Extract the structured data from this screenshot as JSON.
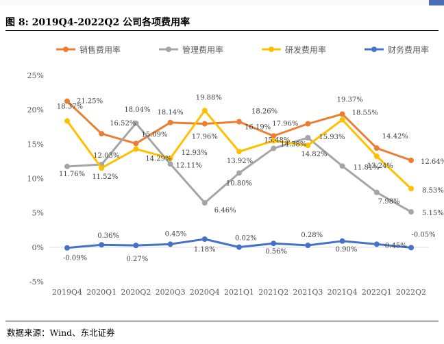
{
  "title": "图  8:  2019Q4-2022Q2 公司各项费用率",
  "source": "数据来源：Wind、东北证券",
  "chart_data": {
    "type": "line",
    "categories": [
      "2019Q4",
      "2020Q1",
      "2020Q2",
      "2020Q3",
      "2020Q4",
      "2021Q1",
      "2021Q2",
      "2021Q3",
      "2021Q4",
      "2022Q1",
      "2022Q2"
    ],
    "ylim": [
      -5,
      25
    ],
    "yticks": [
      -5,
      0,
      5,
      10,
      15,
      20,
      25
    ],
    "ytick_labels": [
      "-5%",
      "0%",
      "5%",
      "10%",
      "15%",
      "20%",
      "25%"
    ],
    "legend_position": "top",
    "grid": false,
    "series": [
      {
        "name": "销售费用率",
        "color": "#ed7d31",
        "values": [
          21.25,
          16.52,
          15.09,
          18.14,
          17.96,
          18.26,
          16.19,
          17.96,
          19.37,
          14.42,
          12.64
        ],
        "labels": [
          "21.25%",
          "16.52%",
          "15.09%",
          "18.14%",
          "17.96%",
          "18.26%",
          "16.19%",
          "17.96%",
          "19.37%",
          "14.42%",
          "12.64%"
        ]
      },
      {
        "name": "管理费用率",
        "color": "#a5a5a5",
        "values": [
          11.76,
          12.03,
          18.04,
          12.11,
          6.46,
          10.8,
          14.38,
          15.93,
          11.81,
          7.98,
          5.15
        ],
        "labels": [
          "11.76%",
          "12.03%",
          "18.04%",
          "12.11%",
          "6.46%",
          "10.80%",
          "14.38%",
          "15.93%",
          "11.81%",
          "7.98%",
          "5.15%"
        ]
      },
      {
        "name": "研发费用率",
        "color": "#ffc000",
        "values": [
          18.37,
          11.52,
          14.29,
          12.93,
          19.88,
          13.92,
          15.48,
          14.82,
          18.55,
          13.24,
          8.53
        ],
        "labels": [
          "18.37%",
          "11.52%",
          "14.29%",
          "12.93%",
          "19.88%",
          "13.92%",
          "15.48%",
          "14.82%",
          "18.55%",
          "13.24%",
          "8.53%"
        ]
      },
      {
        "name": "财务费用率",
        "color": "#4472c4",
        "values": [
          -0.09,
          0.36,
          0.27,
          0.45,
          1.18,
          0.02,
          0.56,
          0.28,
          0.9,
          0.45,
          -0.05
        ],
        "labels": [
          "-0.09%",
          "0.36%",
          "0.27%",
          "0.45%",
          "1.18%",
          "0.02%",
          "0.56%",
          "0.28%",
          "0.90%",
          "0.45%",
          "-0.05%"
        ]
      }
    ]
  }
}
